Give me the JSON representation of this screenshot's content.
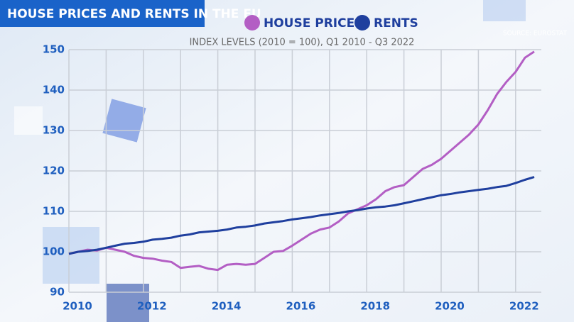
{
  "chart_data": {
    "type": "line",
    "title": "HOUSE PRICES AND RENTS IN THE EU",
    "subtitle": "INDEX LEVELS (2010 = 100), Q1 2010 - Q3 2022",
    "source": "SOURCE: EUROSTAT",
    "x": [
      2010,
      2010.25,
      2010.5,
      2010.75,
      2011,
      2011.25,
      2011.5,
      2011.75,
      2012,
      2012.25,
      2012.5,
      2012.75,
      2013,
      2013.25,
      2013.5,
      2013.75,
      2014,
      2014.25,
      2014.5,
      2014.75,
      2015,
      2015.25,
      2015.5,
      2015.75,
      2016,
      2016.25,
      2016.5,
      2016.75,
      2017,
      2017.25,
      2017.5,
      2017.75,
      2018,
      2018.25,
      2018.5,
      2018.75,
      2019,
      2019.25,
      2019.5,
      2019.75,
      2020,
      2020.25,
      2020.5,
      2020.75,
      2021,
      2021.25,
      2021.5,
      2021.75,
      2022,
      2022.25,
      2022.5
    ],
    "series": [
      {
        "name": "HOUSE PRICES",
        "color": "#b35ec4",
        "values": [
          99.5,
          100,
          100.5,
          100.3,
          101,
          100.5,
          100,
          99,
          98.5,
          98.3,
          97.8,
          97.5,
          96,
          96.3,
          96.5,
          95.8,
          95.5,
          96.8,
          97,
          96.8,
          97,
          98.5,
          100,
          100.2,
          101.5,
          103,
          104.5,
          105.5,
          106,
          107.5,
          109.5,
          110.5,
          111.5,
          113,
          115,
          116,
          116.5,
          118.5,
          120.5,
          121.5,
          123,
          125,
          127,
          129,
          131.5,
          135,
          139,
          142,
          144.5,
          148,
          149.5
        ]
      },
      {
        "name": "RENTS",
        "color": "#1f3f9e",
        "values": [
          99.5,
          100,
          100.2,
          100.5,
          101,
          101.5,
          102,
          102.2,
          102.5,
          103,
          103.2,
          103.5,
          104,
          104.3,
          104.8,
          105,
          105.2,
          105.5,
          106,
          106.2,
          106.5,
          107,
          107.3,
          107.6,
          108,
          108.3,
          108.6,
          109,
          109.3,
          109.6,
          110,
          110.3,
          110.7,
          111,
          111.2,
          111.5,
          112,
          112.5,
          113,
          113.5,
          114,
          114.3,
          114.7,
          115,
          115.3,
          115.6,
          116,
          116.3,
          117,
          117.8,
          118.5
        ]
      }
    ],
    "xlim": [
      2010,
      2022.5
    ],
    "xticks": [
      2010,
      2012,
      2014,
      2016,
      2018,
      2020,
      2022
    ],
    "x_gridlines": [
      2010,
      2011,
      2012,
      2013,
      2014,
      2015,
      2016,
      2017,
      2018,
      2019,
      2020,
      2021,
      2022
    ],
    "ylim": [
      90,
      150
    ],
    "yticks": [
      90,
      100,
      110,
      120,
      130,
      140,
      150
    ],
    "grid": true
  }
}
